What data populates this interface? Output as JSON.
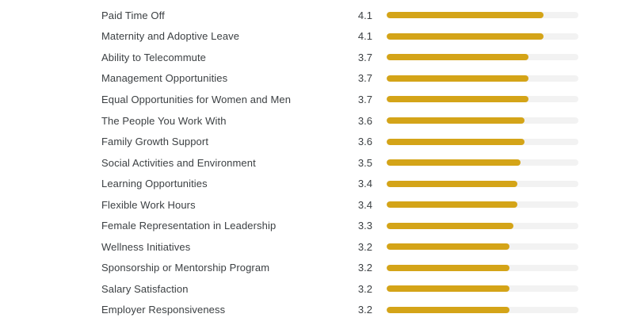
{
  "chart_data": {
    "type": "bar",
    "orientation": "horizontal",
    "categories": [
      "Paid Time Off",
      "Maternity and Adoptive Leave",
      "Ability to Telecommute",
      "Management Opportunities",
      "Equal Opportunities for Women and Men",
      "The People You Work With",
      "Family Growth Support",
      "Social Activities and Environment",
      "Learning Opportunities",
      "Flexible Work Hours",
      "Female Representation in Leadership",
      "Wellness Initiatives",
      "Sponsorship or Mentorship Program",
      "Salary Satisfaction",
      "Employer Responsiveness"
    ],
    "values": [
      4.1,
      4.1,
      3.7,
      3.7,
      3.7,
      3.6,
      3.6,
      3.5,
      3.4,
      3.4,
      3.3,
      3.2,
      3.2,
      3.2,
      3.2
    ],
    "value_range": [
      0,
      5
    ],
    "bar_color": "#d4a418",
    "track_color": "#f2f2f2",
    "text_color": "#3c4043",
    "grid": false,
    "legend": false,
    "title": "",
    "xlabel": "",
    "ylabel": ""
  }
}
